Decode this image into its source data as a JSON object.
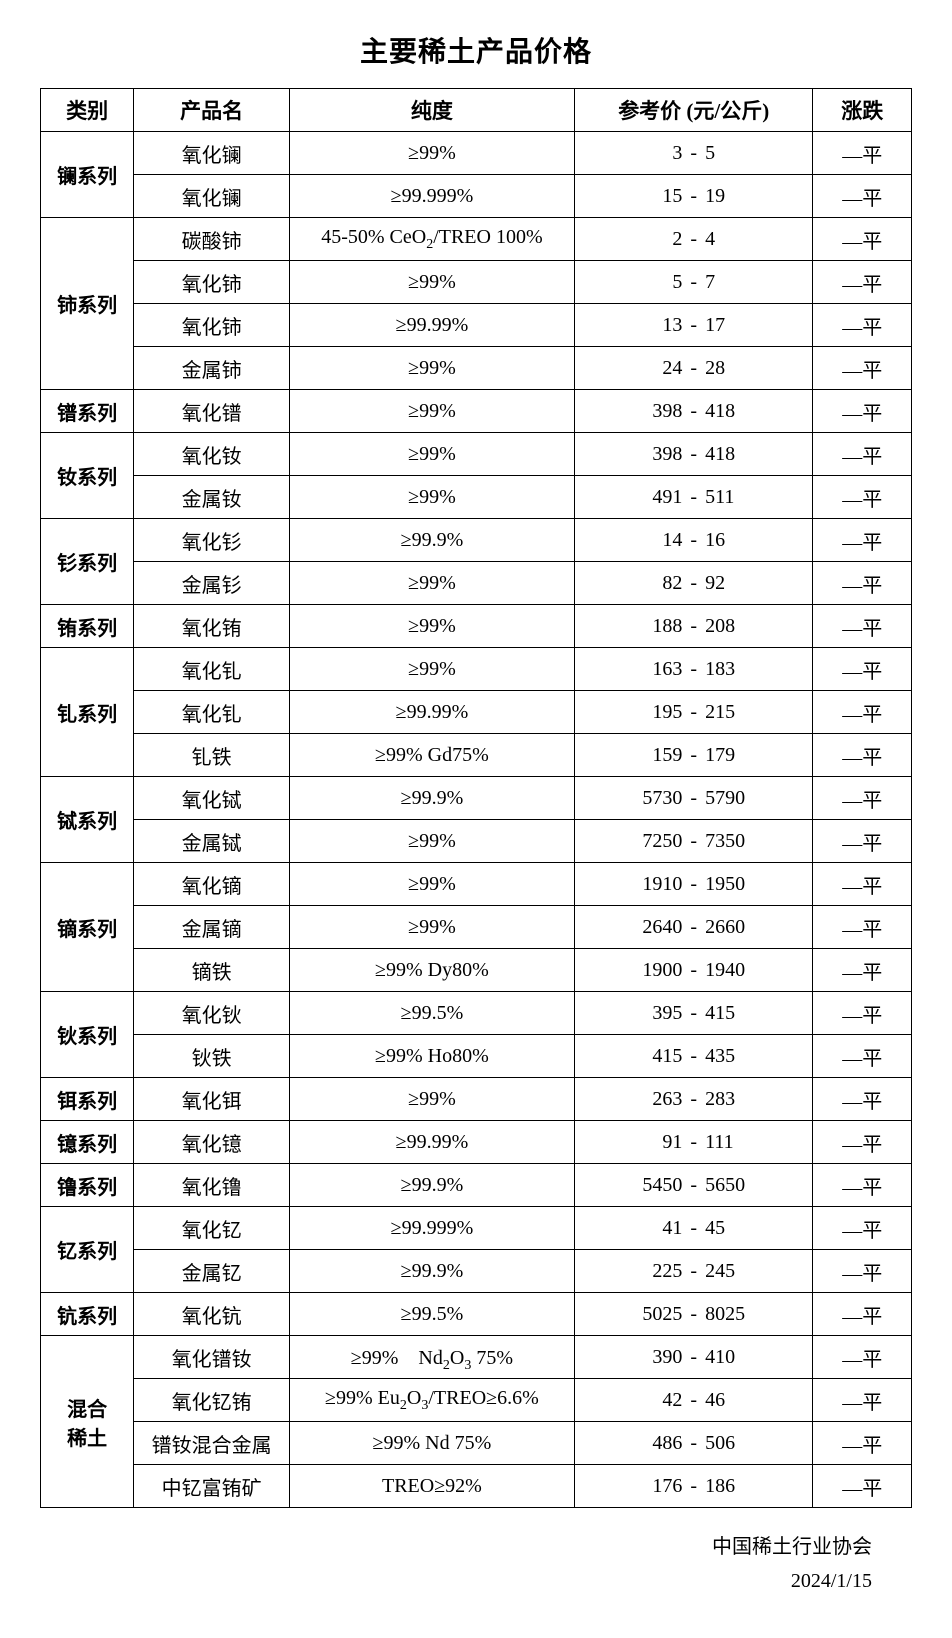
{
  "title": "主要稀土产品价格",
  "columns": [
    "类别",
    "产品名",
    "纯度",
    "参考价 (元/公斤)",
    "涨跌"
  ],
  "footer": {
    "org": "中国稀土行业协会",
    "date": "2024/1/15"
  },
  "data": [
    {
      "cat": "镧系列",
      "rows": [
        {
          "name": "氧化镧",
          "purity": "≥99%",
          "lo": "3",
          "hi": "5",
          "trend": "—平"
        },
        {
          "name": "氧化镧",
          "purity": "≥99.999%",
          "lo": "15",
          "hi": "19",
          "trend": "—平"
        }
      ]
    },
    {
      "cat": "铈系列",
      "rows": [
        {
          "name": "碳酸铈",
          "purity": "45-50% CeO<sub>2</sub>/TREO 100%",
          "lo": "2",
          "hi": "4",
          "trend": "—平"
        },
        {
          "name": "氧化铈",
          "purity": "≥99%",
          "lo": "5",
          "hi": "7",
          "trend": "—平"
        },
        {
          "name": "氧化铈",
          "purity": "≥99.99%",
          "lo": "13",
          "hi": "17",
          "trend": "—平"
        },
        {
          "name": "金属铈",
          "purity": "≥99%",
          "lo": "24",
          "hi": "28",
          "trend": "—平"
        }
      ]
    },
    {
      "cat": "镨系列",
      "rows": [
        {
          "name": "氧化镨",
          "purity": "≥99%",
          "lo": "398",
          "hi": "418",
          "trend": "—平"
        }
      ]
    },
    {
      "cat": "钕系列",
      "rows": [
        {
          "name": "氧化钕",
          "purity": "≥99%",
          "lo": "398",
          "hi": "418",
          "trend": "—平"
        },
        {
          "name": "金属钕",
          "purity": "≥99%",
          "lo": "491",
          "hi": "511",
          "trend": "—平"
        }
      ]
    },
    {
      "cat": "钐系列",
      "rows": [
        {
          "name": "氧化钐",
          "purity": "≥99.9%",
          "lo": "14",
          "hi": "16",
          "trend": "—平"
        },
        {
          "name": "金属钐",
          "purity": "≥99%",
          "lo": "82",
          "hi": "92",
          "trend": "—平"
        }
      ]
    },
    {
      "cat": "铕系列",
      "rows": [
        {
          "name": "氧化铕",
          "purity": "≥99%",
          "lo": "188",
          "hi": "208",
          "trend": "—平"
        }
      ]
    },
    {
      "cat": "钆系列",
      "rows": [
        {
          "name": "氧化钆",
          "purity": "≥99%",
          "lo": "163",
          "hi": "183",
          "trend": "—平"
        },
        {
          "name": "氧化钆",
          "purity": "≥99.99%",
          "lo": "195",
          "hi": "215",
          "trend": "—平"
        },
        {
          "name": "钆铁",
          "purity": "≥99% Gd75%",
          "lo": "159",
          "hi": "179",
          "trend": "—平"
        }
      ]
    },
    {
      "cat": "铽系列",
      "rows": [
        {
          "name": "氧化铽",
          "purity": "≥99.9%",
          "lo": "5730",
          "hi": "5790",
          "trend": "—平"
        },
        {
          "name": "金属铽",
          "purity": "≥99%",
          "lo": "7250",
          "hi": "7350",
          "trend": "—平"
        }
      ]
    },
    {
      "cat": "镝系列",
      "rows": [
        {
          "name": "氧化镝",
          "purity": "≥99%",
          "lo": "1910",
          "hi": "1950",
          "trend": "—平"
        },
        {
          "name": "金属镝",
          "purity": "≥99%",
          "lo": "2640",
          "hi": "2660",
          "trend": "—平"
        },
        {
          "name": "镝铁",
          "purity": "≥99% Dy80%",
          "lo": "1900",
          "hi": "1940",
          "trend": "—平"
        }
      ]
    },
    {
      "cat": "钬系列",
      "rows": [
        {
          "name": "氧化钬",
          "purity": "≥99.5%",
          "lo": "395",
          "hi": "415",
          "trend": "—平"
        },
        {
          "name": "钬铁",
          "purity": "≥99% Ho80%",
          "lo": "415",
          "hi": "435",
          "trend": "—平"
        }
      ]
    },
    {
      "cat": "铒系列",
      "rows": [
        {
          "name": "氧化铒",
          "purity": "≥99%",
          "lo": "263",
          "hi": "283",
          "trend": "—平"
        }
      ]
    },
    {
      "cat": "镱系列",
      "rows": [
        {
          "name": "氧化镱",
          "purity": "≥99.99%",
          "lo": "91",
          "hi": "111",
          "trend": "—平"
        }
      ]
    },
    {
      "cat": "镥系列",
      "rows": [
        {
          "name": "氧化镥",
          "purity": "≥99.9%",
          "lo": "5450",
          "hi": "5650",
          "trend": "—平"
        }
      ]
    },
    {
      "cat": "钇系列",
      "rows": [
        {
          "name": "氧化钇",
          "purity": "≥99.999%",
          "lo": "41",
          "hi": "45",
          "trend": "—平"
        },
        {
          "name": "金属钇",
          "purity": "≥99.9%",
          "lo": "225",
          "hi": "245",
          "trend": "—平"
        }
      ]
    },
    {
      "cat": "钪系列",
      "rows": [
        {
          "name": "氧化钪",
          "purity": "≥99.5%",
          "lo": "5025",
          "hi": "8025",
          "trend": "—平"
        }
      ]
    },
    {
      "cat": "混合\n稀土",
      "rows": [
        {
          "name": "氧化镨钕",
          "purity": "≥99%　Nd<sub>2</sub>O<sub>3</sub>  75%",
          "lo": "390",
          "hi": "410",
          "trend": "—平"
        },
        {
          "name": "氧化钇铕",
          "purity": "≥99% Eu<sub>2</sub>O<sub>3</sub>/TREO≥6.6%",
          "lo": "42",
          "hi": "46",
          "trend": "—平"
        },
        {
          "name": "镨钕混合金属",
          "purity": "≥99% Nd 75%",
          "lo": "486",
          "hi": "506",
          "trend": "—平"
        },
        {
          "name": "中钇富铕矿",
          "purity": "TREO≥92%",
          "lo": "176",
          "hi": "186",
          "trend": "—平"
        }
      ]
    }
  ]
}
